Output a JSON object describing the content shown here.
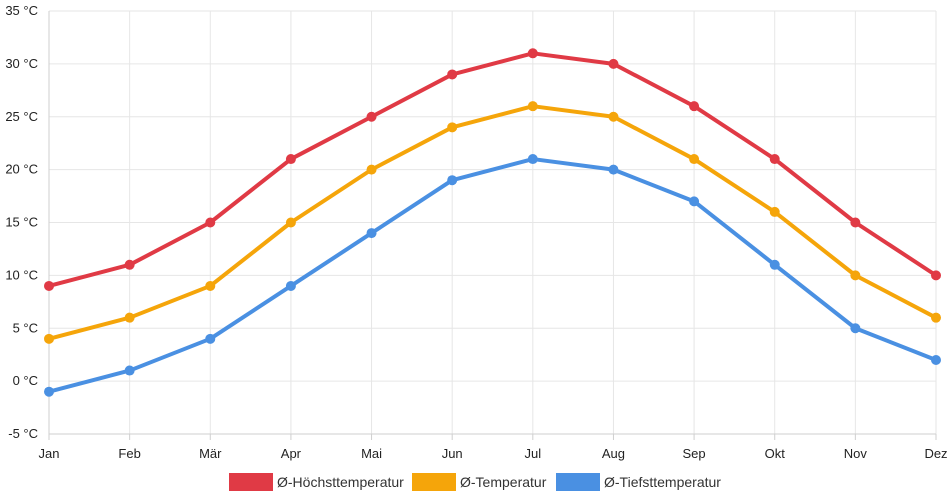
{
  "chart_data": {
    "type": "line",
    "title": "",
    "xlabel": "",
    "ylabel": "",
    "y_unit": "°C",
    "categories": [
      "Jan",
      "Feb",
      "Mär",
      "Apr",
      "Mai",
      "Jun",
      "Jul",
      "Aug",
      "Sep",
      "Okt",
      "Nov",
      "Dez"
    ],
    "ylim": [
      -5,
      35
    ],
    "yticks": [
      -5,
      0,
      5,
      10,
      15,
      20,
      25,
      30,
      35
    ],
    "ytick_labels": [
      "-5 °C",
      "0 °C",
      "5 °C",
      "10 °C",
      "15 °C",
      "20 °C",
      "25 °C",
      "30 °C",
      "35 °C"
    ],
    "grid": true,
    "legend_position": "bottom",
    "series": [
      {
        "name": "Ø-Höchsttemperatur",
        "color": "#e03a45",
        "values": [
          9,
          11,
          15,
          21,
          25,
          29,
          31,
          30,
          26,
          21,
          15,
          10
        ]
      },
      {
        "name": "Ø-Temperatur",
        "color": "#f5a50a",
        "values": [
          4,
          6,
          9,
          15,
          20,
          24,
          26,
          25,
          21,
          16,
          10,
          6
        ]
      },
      {
        "name": "Ø-Tiefsttemperatur",
        "color": "#4a90e2",
        "values": [
          -1,
          1,
          4,
          9,
          14,
          19,
          21,
          20,
          17,
          11,
          5,
          2
        ]
      }
    ]
  }
}
